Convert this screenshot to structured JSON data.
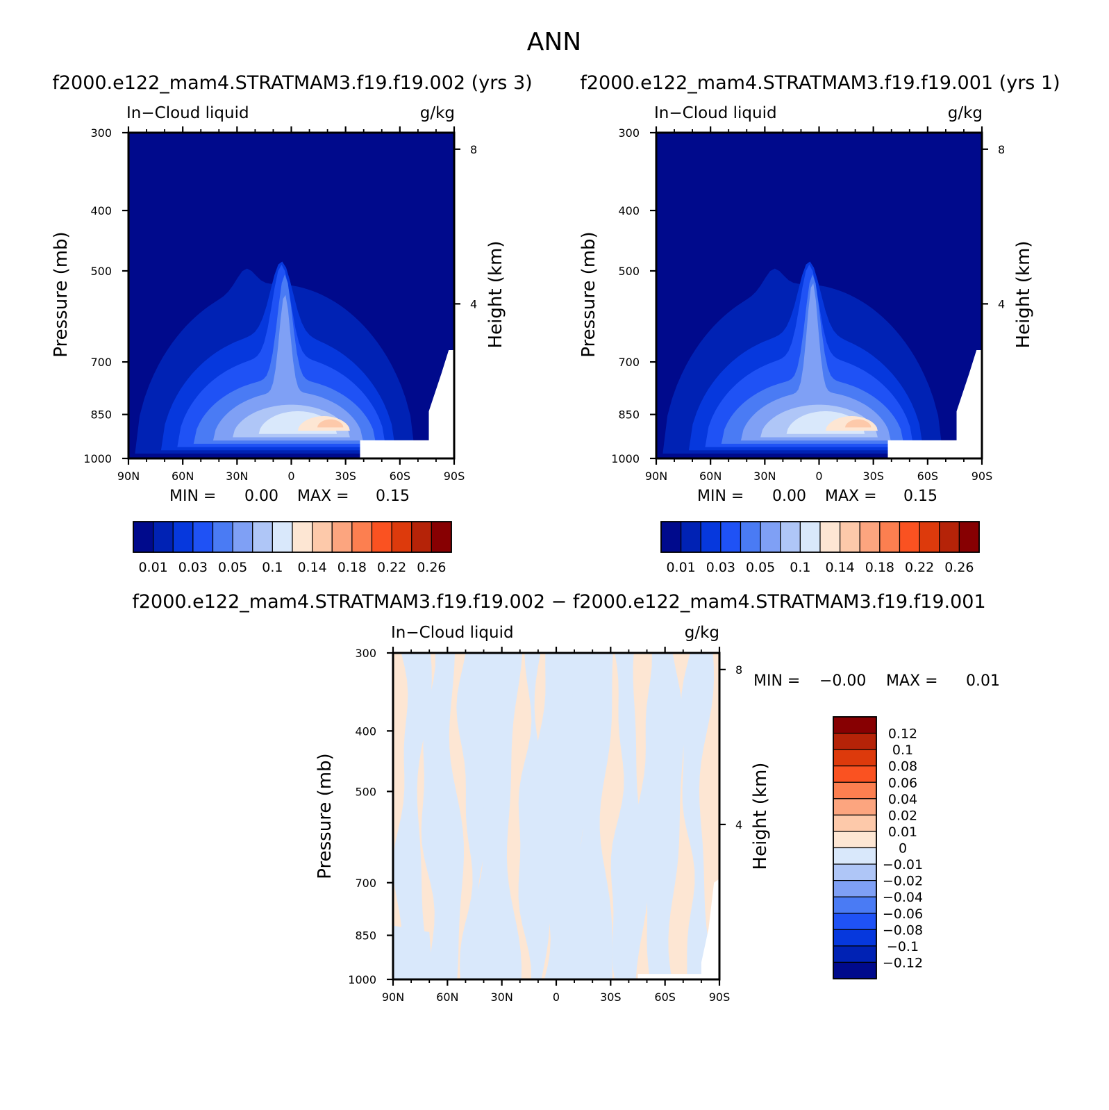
{
  "title": "ANN",
  "chart_data": [
    {
      "type": "heatmap",
      "title": "f2000.e122_mam4.STRATMAM3.f19.f19.002 (yrs 3)",
      "field_label": "In−Cloud liquid",
      "units": "g/kg",
      "xlabel": "",
      "ylabel": "Pressure (mb)",
      "y2label": "Height (km)",
      "x_ticks": [
        "90N",
        "60N",
        "30N",
        "0",
        "30S",
        "60S",
        "90S"
      ],
      "y_ticks": [
        "300",
        "400",
        "500",
        "700",
        "850",
        "1000"
      ],
      "y2_ticks": [
        "8",
        "4"
      ],
      "xlim": [
        90,
        -90
      ],
      "ylim": [
        1000,
        300
      ],
      "min_label": "MIN =",
      "min_value": "0.00",
      "max_label": "MAX =",
      "max_value": "0.15",
      "min": 0.0,
      "max": 0.15,
      "colorbar_labels": [
        "0.01",
        "0.03",
        "0.05",
        "0.1",
        "0.14",
        "0.18",
        "0.22",
        "0.26"
      ],
      "levels": [
        0.01,
        0.02,
        0.03,
        0.04,
        0.05,
        0.07,
        0.1,
        0.12,
        0.14,
        0.16,
        0.18,
        0.2,
        0.22,
        0.24,
        0.26
      ]
    },
    {
      "type": "heatmap",
      "title": "f2000.e122_mam4.STRATMAM3.f19.f19.001 (yrs 1)",
      "field_label": "In−Cloud liquid",
      "units": "g/kg",
      "xlabel": "",
      "ylabel": "Pressure (mb)",
      "y2label": "Height (km)",
      "x_ticks": [
        "90N",
        "60N",
        "30N",
        "0",
        "30S",
        "60S",
        "90S"
      ],
      "y_ticks": [
        "300",
        "400",
        "500",
        "700",
        "850",
        "1000"
      ],
      "y2_ticks": [
        "8",
        "4"
      ],
      "xlim": [
        90,
        -90
      ],
      "ylim": [
        1000,
        300
      ],
      "min_label": "MIN =",
      "min_value": "0.00",
      "max_label": "MAX =",
      "max_value": "0.15",
      "min": 0.0,
      "max": 0.15,
      "colorbar_labels": [
        "0.01",
        "0.03",
        "0.05",
        "0.1",
        "0.14",
        "0.18",
        "0.22",
        "0.26"
      ],
      "levels": [
        0.01,
        0.02,
        0.03,
        0.04,
        0.05,
        0.07,
        0.1,
        0.12,
        0.14,
        0.16,
        0.18,
        0.2,
        0.22,
        0.24,
        0.26
      ]
    },
    {
      "type": "heatmap",
      "title": "f2000.e122_mam4.STRATMAM3.f19.f19.002 − f2000.e122_mam4.STRATMAM3.f19.f19.001",
      "field_label": "In−Cloud liquid",
      "units": "g/kg",
      "xlabel": "",
      "ylabel": "Pressure (mb)",
      "y2label": "Height (km)",
      "x_ticks": [
        "90N",
        "60N",
        "30N",
        "0",
        "30S",
        "60S",
        "90S"
      ],
      "y_ticks": [
        "300",
        "400",
        "500",
        "700",
        "850",
        "1000"
      ],
      "y2_ticks": [
        "8",
        "4"
      ],
      "xlim": [
        90,
        -90
      ],
      "ylim": [
        1000,
        300
      ],
      "min_label": "MIN =",
      "min_value": "−0.00",
      "max_label": "MAX =",
      "max_value": "0.01",
      "min": -0.0,
      "max": 0.01,
      "colorbar_labels": [
        "0.12",
        "0.1",
        "0.08",
        "0.06",
        "0.04",
        "0.02",
        "0.01",
        "0",
        "−0.01",
        "−0.02",
        "−0.04",
        "−0.06",
        "−0.08",
        "−0.1",
        "−0.12"
      ],
      "levels": [
        0.12,
        0.1,
        0.08,
        0.06,
        0.04,
        0.02,
        0.01,
        0,
        -0.01,
        -0.02,
        -0.04,
        -0.06,
        -0.08,
        -0.1,
        -0.12
      ]
    }
  ],
  "colors": {
    "seq": [
      "#000a8c",
      "#0022b4",
      "#0638dd",
      "#1f52f5",
      "#4a7bf4",
      "#7fa0f5",
      "#afc6f7",
      "#d9e8fb",
      "#fde6d3",
      "#fdc9aa",
      "#fca57f",
      "#fc7f50",
      "#fa5221",
      "#dd3a0c",
      "#b52308",
      "#870002"
    ],
    "diff": [
      "#870002",
      "#b52308",
      "#dd3a0c",
      "#fa5221",
      "#fc7f50",
      "#fca57f",
      "#fdc9aa",
      "#fde6d3",
      "#d9e8fb",
      "#afc6f7",
      "#7fa0f5",
      "#4a7bf4",
      "#1f52f5",
      "#0638dd",
      "#0022b4",
      "#000a8c"
    ]
  }
}
